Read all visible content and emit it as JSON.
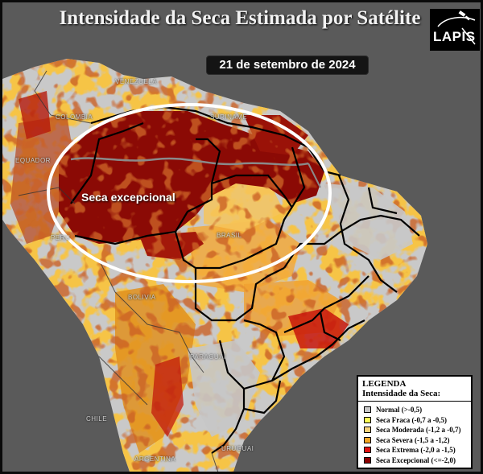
{
  "title": "Intensidade da Seca Estimada por Satélite",
  "date": "21 de setembro de 2024",
  "logo": "LAPIS",
  "callout": "Seca excepcional",
  "map_labels": {
    "venezuela": "VENEZUELA",
    "colombia": "COLOMBIA",
    "suriname": "SURINAME",
    "equador": "EQUADOR",
    "peru": "PERU",
    "brasil": "BRASIL",
    "bolivia": "BOLIVIA",
    "paraguai": "PARAGUAI",
    "chile": "CHILE",
    "argentina": "ARGENTINA",
    "uruguai": "URUGUAI"
  },
  "legend": {
    "heading": "LEGENDA",
    "subheading": "Intensidade da Seca:",
    "items": [
      {
        "label": "Normal (>-0,5)",
        "color": "#c8c8c8"
      },
      {
        "label": "Seca Fraca (-0,7 a -0,5)",
        "color": "#ffff55"
      },
      {
        "label": "Seca Moderada (-1,2 a -0,7)",
        "color": "#f7d27a"
      },
      {
        "label": "Seca Severa (-1,5 a -1,2)",
        "color": "#f5a623"
      },
      {
        "label": "Seca Extrema (-2,0 a -1,5)",
        "color": "#e01010"
      },
      {
        "label": "Seca Excepcional (<=-2,0)",
        "color": "#8b0000"
      }
    ]
  }
}
